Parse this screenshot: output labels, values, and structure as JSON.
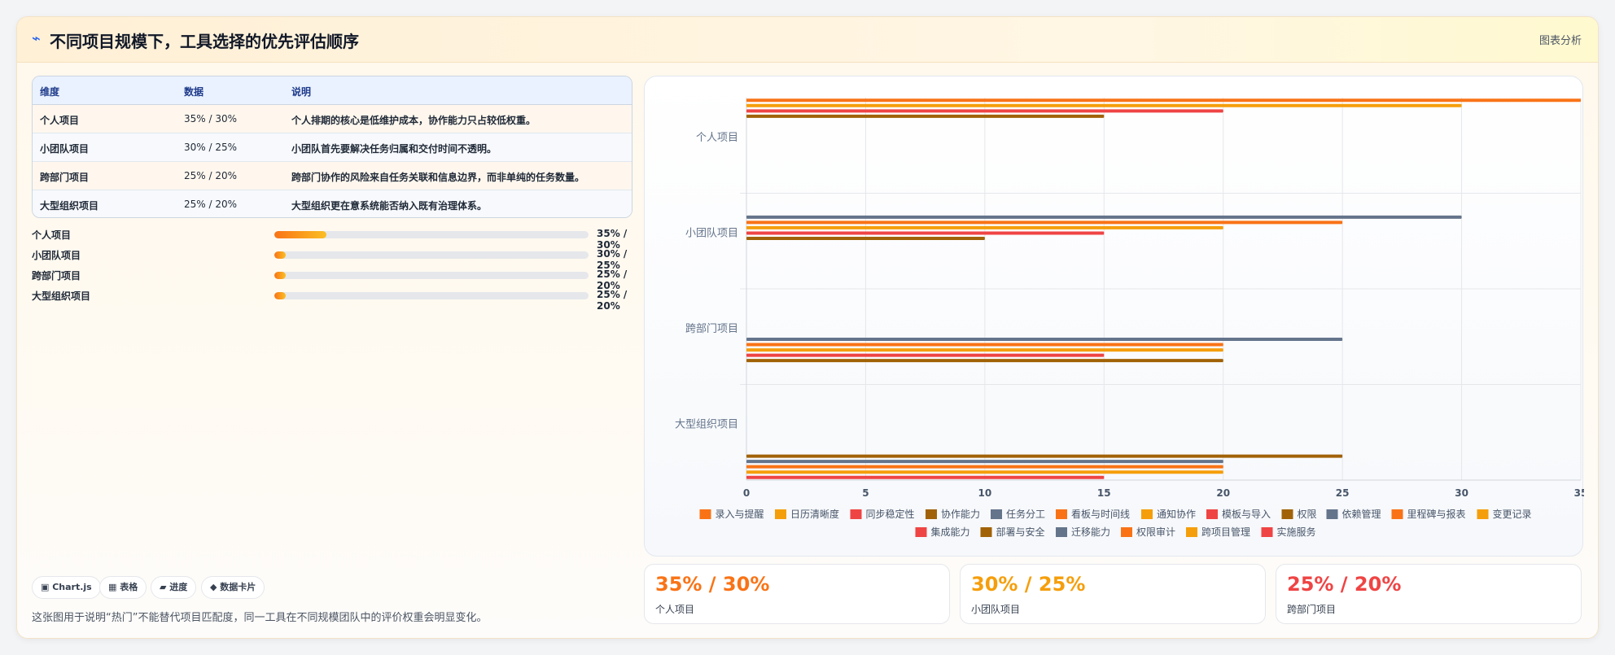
{
  "header": {
    "icon": "⌁",
    "title": "不同项目规模下，工具选择的优先评估顺序",
    "tag": "图表分析"
  },
  "table": {
    "columns": [
      "维度",
      "数据",
      "说明"
    ],
    "rows": [
      [
        "个人项目",
        "35% / 30%",
        "个人排期的核心是低维护成本，协作能力只占较低权重。"
      ],
      [
        "小团队项目",
        "30% / 25%",
        "小团队首先要解决任务归属和交付时间不透明。"
      ],
      [
        "跨部门项目",
        "25% / 20%",
        "跨部门协作的风险来自任务关联和信息边界，而非单纯的任务数量。"
      ],
      [
        "大型组织项目",
        "25% / 20%",
        "大型组织更在意系统能否纳入既有治理体系。"
      ]
    ]
  },
  "progress": [
    {
      "label": "个人项目",
      "value": "35% / 30%",
      "fill": 0.165
    },
    {
      "label": "小团队项目",
      "value": "30% / 25%",
      "fill": 0.035
    },
    {
      "label": "跨部门项目",
      "value": "25% / 20%",
      "fill": 0.035
    },
    {
      "label": "大型组织项目",
      "value": "25% / 20%",
      "fill": 0.035
    }
  ],
  "chips": [
    "▣ Chart.js",
    "▦ 表格",
    "▰ 进度",
    "◆ 数据卡片"
  ],
  "note": "这张图用于说明“热门”不能替代项目匹配度，同一工具在不同规模团队中的评价权重会明显变化。",
  "stats": [
    {
      "value": "35% / 30%",
      "label": "个人项目",
      "color": "#f97316"
    },
    {
      "value": "30% / 25%",
      "label": "小团队项目",
      "color": "#f59e0b"
    },
    {
      "value": "25% / 20%",
      "label": "跨部门项目",
      "color": "#ef4444"
    }
  ],
  "chart_data": {
    "type": "bar",
    "orientation": "horizontal",
    "categories": [
      "个人项目",
      "小团队项目",
      "跨部门项目",
      "大型组织项目"
    ],
    "xlim": [
      0,
      35
    ],
    "xticks": [
      0,
      5,
      10,
      15,
      20,
      25,
      30,
      35
    ],
    "grid": true,
    "legend_position": "bottom",
    "series": [
      {
        "name": "录入与提醒",
        "color": "#f97316",
        "values": [
          35,
          null,
          null,
          null
        ]
      },
      {
        "name": "日历清晰度",
        "color": "#f59e0b",
        "values": [
          30,
          null,
          null,
          null
        ]
      },
      {
        "name": "同步稳定性",
        "color": "#ef4444",
        "values": [
          20,
          null,
          null,
          null
        ]
      },
      {
        "name": "协作能力",
        "color": "#a16207",
        "values": [
          15,
          null,
          null,
          null
        ]
      },
      {
        "name": "任务分工",
        "color": "#64748b",
        "values": [
          null,
          30,
          null,
          null
        ]
      },
      {
        "name": "看板与时间线",
        "color": "#f97316",
        "values": [
          null,
          25,
          null,
          null
        ]
      },
      {
        "name": "通知协作",
        "color": "#f59e0b",
        "values": [
          null,
          20,
          null,
          null
        ]
      },
      {
        "name": "模板与导入",
        "color": "#ef4444",
        "values": [
          null,
          15,
          null,
          null
        ]
      },
      {
        "name": "权限",
        "color": "#a16207",
        "values": [
          null,
          10,
          null,
          null
        ]
      },
      {
        "name": "依赖管理",
        "color": "#64748b",
        "values": [
          null,
          null,
          25,
          null
        ]
      },
      {
        "name": "里程碑与报表",
        "color": "#f97316",
        "values": [
          null,
          null,
          20,
          null
        ]
      },
      {
        "name": "变更记录",
        "color": "#f59e0b",
        "values": [
          null,
          null,
          20,
          null
        ]
      },
      {
        "name": "集成能力",
        "color": "#ef4444",
        "values": [
          null,
          null,
          15,
          null
        ]
      },
      {
        "name": "部署与安全",
        "color": "#a16207",
        "values": [
          null,
          null,
          20,
          25
        ]
      },
      {
        "name": "迁移能力",
        "color": "#64748b",
        "values": [
          null,
          null,
          null,
          20
        ]
      },
      {
        "name": "权限审计",
        "color": "#f97316",
        "values": [
          null,
          null,
          null,
          20
        ]
      },
      {
        "name": "跨项目管理",
        "color": "#f59e0b",
        "values": [
          null,
          null,
          null,
          20
        ]
      },
      {
        "name": "实施服务",
        "color": "#ef4444",
        "values": [
          null,
          null,
          null,
          15
        ]
      }
    ]
  }
}
